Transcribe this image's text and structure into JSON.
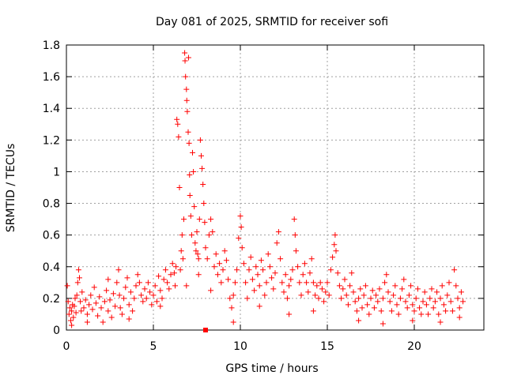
{
  "chart_data": {
    "type": "scatter",
    "title": "Day 081 of 2025, SRMTID for receiver sofi",
    "xlabel": "GPS time / hours",
    "ylabel": "SRMTID / TECUs",
    "xlim": [
      0,
      24
    ],
    "ylim": [
      0,
      1.8
    ],
    "xticks": [
      0,
      5,
      10,
      15,
      20
    ],
    "yticks": [
      0,
      0.2,
      0.4,
      0.6,
      0.8,
      1,
      1.2,
      1.4,
      1.6,
      1.8
    ],
    "grid": true,
    "marker": "+",
    "color": "#ff0000",
    "series": [
      {
        "name": "SRMTID",
        "points": [
          [
            0.05,
            0.28
          ],
          [
            0.1,
            0.18
          ],
          [
            0.15,
            0.1
          ],
          [
            0.2,
            0.14
          ],
          [
            0.25,
            0.06
          ],
          [
            0.3,
            0.12
          ],
          [
            0.35,
            0.16
          ],
          [
            0.4,
            0.08
          ],
          [
            0.45,
            0.15
          ],
          [
            0.5,
            0.2
          ],
          [
            0.55,
            0.11
          ],
          [
            0.6,
            0.22
          ],
          [
            0.65,
            0.3
          ],
          [
            0.7,
            0.38
          ],
          [
            0.75,
            0.33
          ],
          [
            0.8,
            0.18
          ],
          [
            0.85,
            0.12
          ],
          [
            0.9,
            0.24
          ],
          [
            1.0,
            0.14
          ],
          [
            1.1,
            0.19
          ],
          [
            1.2,
            0.1
          ],
          [
            1.3,
            0.16
          ],
          [
            1.4,
            0.22
          ],
          [
            1.5,
            0.13
          ],
          [
            1.6,
            0.27
          ],
          [
            1.7,
            0.17
          ],
          [
            1.8,
            0.09
          ],
          [
            1.9,
            0.21
          ],
          [
            2.0,
            0.14
          ],
          [
            2.1,
            0.05
          ],
          [
            2.2,
            0.18
          ],
          [
            2.3,
            0.25
          ],
          [
            2.4,
            0.12
          ],
          [
            2.5,
            0.19
          ],
          [
            2.6,
            0.08
          ],
          [
            2.7,
            0.23
          ],
          [
            2.8,
            0.15
          ],
          [
            2.9,
            0.3
          ],
          [
            3.0,
            0.38
          ],
          [
            3.05,
            0.22
          ],
          [
            3.1,
            0.14
          ],
          [
            3.2,
            0.1
          ],
          [
            3.3,
            0.2
          ],
          [
            3.4,
            0.27
          ],
          [
            3.5,
            0.33
          ],
          [
            3.6,
            0.16
          ],
          [
            3.7,
            0.24
          ],
          [
            3.8,
            0.12
          ],
          [
            3.9,
            0.2
          ],
          [
            4.0,
            0.28
          ],
          [
            4.1,
            0.35
          ],
          [
            4.2,
            0.3
          ],
          [
            4.3,
            0.22
          ],
          [
            4.4,
            0.18
          ],
          [
            4.5,
            0.26
          ],
          [
            4.6,
            0.2
          ],
          [
            4.7,
            0.3
          ],
          [
            4.8,
            0.24
          ],
          [
            4.9,
            0.16
          ],
          [
            5.0,
            0.22
          ],
          [
            5.1,
            0.28
          ],
          [
            5.2,
            0.18
          ],
          [
            5.3,
            0.34
          ],
          [
            5.4,
            0.25
          ],
          [
            5.5,
            0.2
          ],
          [
            5.6,
            0.32
          ],
          [
            5.7,
            0.38
          ],
          [
            5.8,
            0.3
          ],
          [
            5.9,
            0.26
          ],
          [
            6.0,
            0.35
          ],
          [
            6.1,
            0.42
          ],
          [
            6.2,
            0.36
          ],
          [
            6.25,
            0.28
          ],
          [
            6.3,
            0.4
          ],
          [
            6.35,
            1.33
          ],
          [
            6.4,
            1.3
          ],
          [
            6.45,
            1.22
          ],
          [
            6.5,
            0.9
          ],
          [
            6.55,
            0.38
          ],
          [
            6.6,
            0.5
          ],
          [
            6.65,
            0.6
          ],
          [
            6.7,
            0.45
          ],
          [
            6.75,
            0.7
          ],
          [
            6.8,
            1.75
          ],
          [
            6.82,
            1.7
          ],
          [
            6.85,
            1.6
          ],
          [
            6.9,
            1.52
          ],
          [
            6.92,
            1.45
          ],
          [
            6.95,
            1.38
          ],
          [
            7.0,
            1.25
          ],
          [
            7.02,
            1.72
          ],
          [
            7.05,
            1.18
          ],
          [
            7.08,
            0.98
          ],
          [
            7.1,
            0.85
          ],
          [
            7.15,
            0.72
          ],
          [
            7.2,
            0.6
          ],
          [
            7.25,
            1.12
          ],
          [
            7.3,
            1.0
          ],
          [
            7.35,
            0.78
          ],
          [
            7.4,
            0.55
          ],
          [
            7.45,
            0.5
          ],
          [
            7.5,
            0.62
          ],
          [
            7.55,
            0.48
          ],
          [
            7.6,
            0.45
          ],
          [
            7.65,
            0.7
          ],
          [
            7.7,
            1.2
          ],
          [
            7.75,
            1.1
          ],
          [
            7.8,
            1.02
          ],
          [
            7.85,
            0.92
          ],
          [
            7.9,
            0.8
          ],
          [
            7.95,
            0.68
          ],
          [
            8.0,
            0.52
          ],
          [
            8.1,
            0.45
          ],
          [
            8.2,
            0.6
          ],
          [
            8.3,
            0.7
          ],
          [
            8.4,
            0.62
          ],
          [
            8.5,
            0.4
          ],
          [
            8.6,
            0.48
          ],
          [
            8.7,
            0.35
          ],
          [
            8.8,
            0.42
          ],
          [
            8.9,
            0.3
          ],
          [
            9.0,
            0.38
          ],
          [
            9.1,
            0.5
          ],
          [
            9.2,
            0.44
          ],
          [
            9.3,
            0.32
          ],
          [
            9.4,
            0.2
          ],
          [
            9.5,
            0.14
          ],
          [
            9.6,
            0.22
          ],
          [
            9.7,
            0.3
          ],
          [
            9.8,
            0.38
          ],
          [
            9.9,
            0.58
          ],
          [
            10.0,
            0.72
          ],
          [
            10.05,
            0.65
          ],
          [
            10.1,
            0.52
          ],
          [
            10.2,
            0.42
          ],
          [
            10.3,
            0.3
          ],
          [
            10.4,
            0.2
          ],
          [
            10.5,
            0.38
          ],
          [
            10.6,
            0.46
          ],
          [
            10.7,
            0.32
          ],
          [
            10.8,
            0.25
          ],
          [
            10.9,
            0.4
          ],
          [
            11.0,
            0.35
          ],
          [
            11.1,
            0.28
          ],
          [
            11.2,
            0.44
          ],
          [
            11.3,
            0.38
          ],
          [
            11.4,
            0.22
          ],
          [
            11.5,
            0.3
          ],
          [
            11.6,
            0.48
          ],
          [
            11.7,
            0.4
          ],
          [
            11.8,
            0.33
          ],
          [
            11.9,
            0.26
          ],
          [
            12.0,
            0.36
          ],
          [
            12.1,
            0.55
          ],
          [
            12.2,
            0.62
          ],
          [
            12.3,
            0.45
          ],
          [
            12.4,
            0.3
          ],
          [
            12.5,
            0.24
          ],
          [
            12.6,
            0.35
          ],
          [
            12.7,
            0.2
          ],
          [
            12.8,
            0.28
          ],
          [
            12.9,
            0.32
          ],
          [
            13.0,
            0.38
          ],
          [
            13.1,
            0.7
          ],
          [
            13.15,
            0.6
          ],
          [
            13.2,
            0.5
          ],
          [
            13.3,
            0.4
          ],
          [
            13.4,
            0.3
          ],
          [
            13.5,
            0.22
          ],
          [
            13.6,
            0.35
          ],
          [
            13.7,
            0.42
          ],
          [
            13.8,
            0.3
          ],
          [
            13.9,
            0.24
          ],
          [
            14.0,
            0.36
          ],
          [
            14.1,
            0.45
          ],
          [
            14.2,
            0.3
          ],
          [
            14.3,
            0.22
          ],
          [
            14.4,
            0.28
          ],
          [
            14.5,
            0.2
          ],
          [
            14.6,
            0.3
          ],
          [
            14.7,
            0.26
          ],
          [
            14.8,
            0.18
          ],
          [
            14.9,
            0.24
          ],
          [
            15.0,
            0.3
          ],
          [
            15.1,
            0.22
          ],
          [
            15.2,
            0.38
          ],
          [
            15.3,
            0.46
          ],
          [
            15.4,
            0.54
          ],
          [
            15.45,
            0.6
          ],
          [
            15.5,
            0.5
          ],
          [
            15.6,
            0.36
          ],
          [
            15.7,
            0.28
          ],
          [
            15.8,
            0.2
          ],
          [
            15.9,
            0.26
          ],
          [
            16.0,
            0.32
          ],
          [
            16.1,
            0.22
          ],
          [
            16.2,
            0.16
          ],
          [
            16.3,
            0.28
          ],
          [
            16.4,
            0.36
          ],
          [
            16.5,
            0.24
          ],
          [
            16.6,
            0.18
          ],
          [
            16.7,
            0.12
          ],
          [
            16.8,
            0.2
          ],
          [
            16.9,
            0.26
          ],
          [
            17.0,
            0.14
          ],
          [
            17.1,
            0.22
          ],
          [
            17.2,
            0.28
          ],
          [
            17.3,
            0.16
          ],
          [
            17.4,
            0.1
          ],
          [
            17.5,
            0.2
          ],
          [
            17.6,
            0.25
          ],
          [
            17.7,
            0.14
          ],
          [
            17.8,
            0.22
          ],
          [
            17.9,
            0.18
          ],
          [
            18.0,
            0.26
          ],
          [
            18.1,
            0.12
          ],
          [
            18.2,
            0.2
          ],
          [
            18.3,
            0.3
          ],
          [
            18.4,
            0.35
          ],
          [
            18.5,
            0.24
          ],
          [
            18.6,
            0.18
          ],
          [
            18.7,
            0.12
          ],
          [
            18.8,
            0.22
          ],
          [
            18.9,
            0.28
          ],
          [
            19.0,
            0.16
          ],
          [
            19.1,
            0.1
          ],
          [
            19.2,
            0.2
          ],
          [
            19.3,
            0.26
          ],
          [
            19.4,
            0.32
          ],
          [
            19.5,
            0.18
          ],
          [
            19.6,
            0.14
          ],
          [
            19.7,
            0.22
          ],
          [
            19.8,
            0.28
          ],
          [
            19.9,
            0.16
          ],
          [
            20.0,
            0.12
          ],
          [
            20.1,
            0.2
          ],
          [
            20.2,
            0.26
          ],
          [
            20.3,
            0.14
          ],
          [
            20.4,
            0.1
          ],
          [
            20.5,
            0.18
          ],
          [
            20.6,
            0.24
          ],
          [
            20.7,
            0.16
          ],
          [
            20.8,
            0.1
          ],
          [
            20.9,
            0.2
          ],
          [
            21.0,
            0.26
          ],
          [
            21.1,
            0.14
          ],
          [
            21.2,
            0.18
          ],
          [
            21.3,
            0.24
          ],
          [
            21.4,
            0.1
          ],
          [
            21.5,
            0.2
          ],
          [
            21.6,
            0.28
          ],
          [
            21.7,
            0.16
          ],
          [
            21.8,
            0.12
          ],
          [
            21.9,
            0.22
          ],
          [
            22.0,
            0.3
          ],
          [
            22.1,
            0.18
          ],
          [
            22.2,
            0.12
          ],
          [
            22.3,
            0.38
          ],
          [
            22.4,
            0.28
          ],
          [
            22.5,
            0.2
          ],
          [
            22.6,
            0.14
          ],
          [
            22.7,
            0.24
          ],
          [
            22.8,
            0.18
          ],
          [
            0.3,
            0.03
          ],
          [
            1.2,
            0.05
          ],
          [
            3.6,
            0.07
          ],
          [
            5.4,
            0.15
          ],
          [
            6.9,
            0.28
          ],
          [
            7.6,
            0.35
          ],
          [
            8.3,
            0.25
          ],
          [
            9.6,
            0.05
          ],
          [
            11.1,
            0.15
          ],
          [
            12.8,
            0.1
          ],
          [
            14.2,
            0.12
          ],
          [
            16.8,
            0.06
          ],
          [
            18.2,
            0.04
          ],
          [
            19.9,
            0.06
          ],
          [
            21.5,
            0.05
          ],
          [
            22.6,
            0.08
          ],
          [
            2.4,
            0.32
          ]
        ]
      }
    ],
    "bad_points": [
      [
        8.0,
        0.0
      ]
    ]
  }
}
